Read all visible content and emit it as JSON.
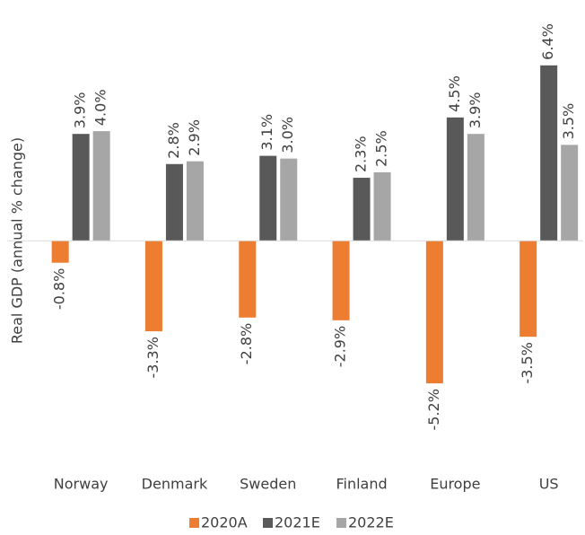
{
  "chart_data": {
    "type": "bar",
    "y_label": "Real GDP (annual % change)",
    "categories": [
      "Norway",
      "Denmark",
      "Sweden",
      "Finland",
      "Europe",
      "US"
    ],
    "series": [
      {
        "name": "2020A",
        "color": "#ed7d31",
        "values": [
          -0.8,
          -3.3,
          -2.8,
          -2.9,
          -5.2,
          -3.5
        ],
        "value_labels": [
          "-0.8%",
          "-3.3%",
          "-2.8%",
          "-2.9%",
          "-5.2%",
          "-3.5%"
        ]
      },
      {
        "name": "2021E",
        "color": "#595959",
        "values": [
          3.9,
          2.8,
          3.1,
          2.3,
          4.5,
          6.4
        ],
        "value_labels": [
          "3.9%",
          "2.8%",
          "3.1%",
          "2.3%",
          "4.5%",
          "6.4%"
        ]
      },
      {
        "name": "2022E",
        "color": "#a6a6a6",
        "values": [
          4.0,
          2.9,
          3.0,
          2.5,
          3.9,
          3.5
        ],
        "value_labels": [
          "4.0%",
          "2.9%",
          "3.0%",
          "2.5%",
          "3.9%",
          "3.5%"
        ]
      }
    ],
    "ylim": [
      -6,
      7
    ],
    "grid": false,
    "legend": "bottom"
  }
}
